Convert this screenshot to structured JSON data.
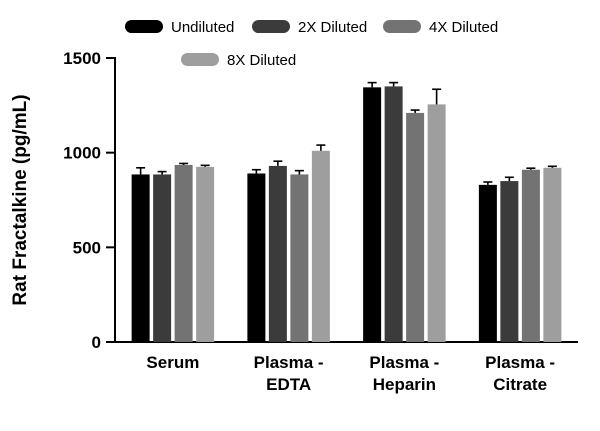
{
  "chart_data": {
    "type": "bar",
    "title": "",
    "xlabel": "",
    "ylabel": "Rat Fractalkine (pg/mL)",
    "ylim": [
      0,
      1500
    ],
    "yticks": [
      0,
      500,
      1000,
      1500
    ],
    "grid": false,
    "legend_position": "top",
    "categories": [
      "Serum",
      "Plasma -\nEDTA",
      "Plasma -\nHeparin",
      "Plasma -\nCitrate"
    ],
    "series": [
      {
        "name": "Undiluted",
        "color": "#000000",
        "values": [
          885,
          890,
          1345,
          830
        ],
        "errors": [
          35,
          20,
          25,
          15
        ]
      },
      {
        "name": "2X Diluted",
        "color": "#3b3b3b",
        "values": [
          885,
          930,
          1350,
          850
        ],
        "errors": [
          15,
          25,
          20,
          20
        ]
      },
      {
        "name": "4X Diluted",
        "color": "#737373",
        "values": [
          935,
          885,
          1210,
          910
        ],
        "errors": [
          8,
          20,
          15,
          8
        ]
      },
      {
        "name": "8X Diluted",
        "color": "#9e9e9e",
        "values": [
          925,
          1010,
          1255,
          920
        ],
        "errors": [
          8,
          30,
          80,
          8
        ]
      }
    ]
  }
}
